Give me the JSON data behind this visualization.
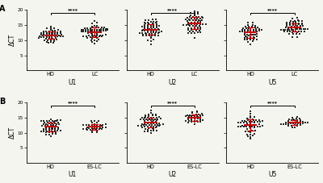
{
  "panels": [
    {
      "row": 0,
      "col": 0,
      "xlabel": "U1",
      "groups": [
        "HD",
        "LC"
      ],
      "hd_mean": 11.8,
      "hd_std": 1.4,
      "lc_mean": 12.8,
      "lc_std": 1.5,
      "hd_n": 60,
      "lc_n": 70,
      "ylim": [
        0,
        20
      ],
      "yticks": [
        5,
        10,
        15,
        20
      ]
    },
    {
      "row": 0,
      "col": 1,
      "xlabel": "U2",
      "groups": [
        "HD",
        "LC"
      ],
      "hd_mean": 13.2,
      "hd_std": 2.0,
      "lc_mean": 15.5,
      "lc_std": 1.8,
      "hd_n": 70,
      "lc_n": 70,
      "ylim": [
        0,
        20
      ],
      "yticks": [
        5,
        10,
        15,
        20
      ]
    },
    {
      "row": 0,
      "col": 2,
      "xlabel": "U5",
      "groups": [
        "HD",
        "LC"
      ],
      "hd_mean": 12.8,
      "hd_std": 1.8,
      "lc_mean": 14.5,
      "lc_std": 1.5,
      "hd_n": 60,
      "lc_n": 65,
      "ylim": [
        0,
        20
      ],
      "yticks": [
        5,
        10,
        15,
        20
      ]
    },
    {
      "row": 1,
      "col": 0,
      "xlabel": "U1",
      "groups": [
        "HD",
        "ES-LC"
      ],
      "hd_mean": 11.8,
      "hd_std": 1.4,
      "lc_mean": 12.2,
      "lc_std": 1.0,
      "hd_n": 60,
      "lc_n": 40,
      "ylim": [
        0,
        20
      ],
      "yticks": [
        5,
        10,
        15,
        20
      ]
    },
    {
      "row": 1,
      "col": 1,
      "xlabel": "U2",
      "groups": [
        "HD",
        "ES-LC"
      ],
      "hd_mean": 13.2,
      "hd_std": 2.0,
      "lc_mean": 15.0,
      "lc_std": 1.2,
      "hd_n": 70,
      "lc_n": 40,
      "ylim": [
        0,
        20
      ],
      "yticks": [
        5,
        10,
        15,
        20
      ]
    },
    {
      "row": 1,
      "col": 2,
      "xlabel": "U5",
      "groups": [
        "HD",
        "ES-LC"
      ],
      "hd_mean": 12.8,
      "hd_std": 1.8,
      "lc_mean": 13.5,
      "lc_std": 1.0,
      "hd_n": 60,
      "lc_n": 38,
      "ylim": [
        0,
        20
      ],
      "yticks": [
        5,
        10,
        15,
        20
      ]
    }
  ],
  "dot_color": "#111111",
  "mean_line_color": "#cc0000",
  "error_color": "#cc0000",
  "background_color": "#f5f5f0",
  "ylabel": "ΔCT",
  "significance": "****"
}
